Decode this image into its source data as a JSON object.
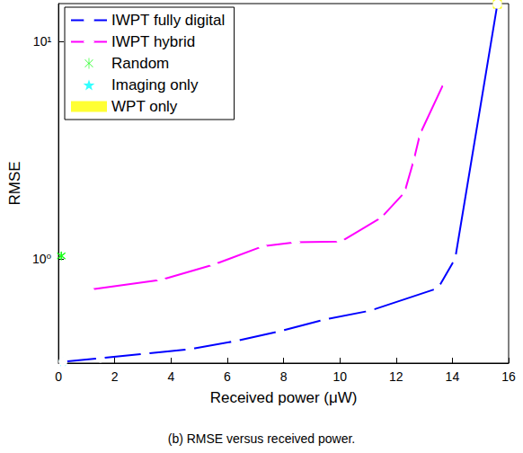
{
  "chart_data": {
    "type": "line",
    "title": "(b) RMSE versus received power.",
    "x_label": "Received power (μW)",
    "y_label": "RMSE",
    "log": "y",
    "grid": false,
    "legend": "top-left",
    "xlim": [
      0,
      16
    ],
    "xticks": [
      0,
      2,
      4,
      6,
      8,
      10,
      12,
      14,
      16
    ],
    "ylim": [
      0.33,
      15
    ],
    "yticks": [
      {
        "value": 1,
        "label": "10⁰"
      },
      {
        "value": 10,
        "label": "10¹"
      }
    ],
    "series": [
      {
        "name": "IWPT fully digital",
        "type": "line",
        "color": "#0000ff",
        "marker": "circle",
        "line_style": "solid",
        "x": [
          0.16,
          1.49,
          3.08,
          4.67,
          6.29,
          7.87,
          9.46,
          11.08,
          13.49,
          14.1,
          15.6
        ],
        "values": [
          0.335,
          0.348,
          0.365,
          0.383,
          0.417,
          0.463,
          0.524,
          0.576,
          0.731,
          1.0,
          14.9
        ]
      },
      {
        "name": "IWPT hybrid",
        "type": "line",
        "color": "#ff00ff",
        "marker": "diamond",
        "line_style": "solid",
        "x": [
          1.11,
          3.66,
          5.53,
          7.25,
          8.43,
          10.05,
          11.48,
          12.3,
          12.63,
          12.85,
          13.71
        ],
        "values": [
          0.72,
          0.8,
          0.94,
          1.14,
          1.19,
          1.2,
          1.55,
          2.02,
          2.85,
          3.75,
          6.5
        ]
      },
      {
        "name": "Random",
        "type": "scatter",
        "color": "#00ff00",
        "marker": "asterisk",
        "x": [
          0.1
        ],
        "values": [
          1.03
        ]
      },
      {
        "name": "Imaging only",
        "type": "scatter",
        "color": "#00ffff",
        "marker": "star",
        "x": [
          0.16
        ],
        "values": [
          0.335
        ]
      },
      {
        "name": "WPT only",
        "type": "scatter",
        "color": "#ffff00",
        "marker": "square",
        "x": [
          15.6
        ],
        "values": [
          14.9
        ]
      }
    ]
  }
}
